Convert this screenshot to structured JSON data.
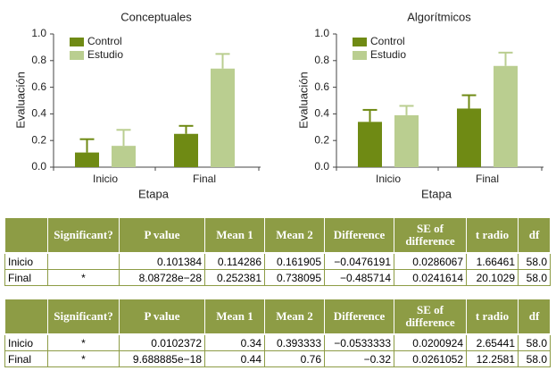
{
  "chart_data": [
    {
      "type": "bar",
      "title": "Conceptuales",
      "y_label": "Evaluación",
      "x_label": "Etapa",
      "categories": [
        "Inicio",
        "Final"
      ],
      "series": [
        {
          "name": "Control",
          "color": "#6f8a14",
          "values": [
            0.11,
            0.25
          ],
          "errors": [
            0.1,
            0.06
          ]
        },
        {
          "name": "Estudio",
          "color": "#bace90",
          "values": [
            0.16,
            0.74
          ],
          "errors": [
            0.12,
            0.11
          ]
        }
      ],
      "ylim": [
        0,
        1
      ],
      "yticks": [
        {
          "value": 0,
          "label": "0.0"
        },
        0.2,
        0.4,
        0.6,
        0.8,
        {
          "value": 1,
          "label": "1.0"
        }
      ],
      "legend": "upper left"
    },
    {
      "type": "bar",
      "title": "Algorítmicos",
      "y_label": "Evaluación",
      "x_label": "Etapa",
      "categories": [
        "Inicio",
        "Final"
      ],
      "series": [
        {
          "name": "Control",
          "color": "#6f8a14",
          "values": [
            0.34,
            0.44
          ],
          "errors": [
            0.09,
            0.1
          ]
        },
        {
          "name": "Estudio",
          "color": "#bace90",
          "values": [
            0.39,
            0.76
          ],
          "errors": [
            0.07,
            0.1
          ]
        }
      ],
      "ylim": [
        0,
        1
      ],
      "yticks": [
        {
          "value": 0,
          "label": "0.0"
        },
        0.2,
        0.4,
        0.6,
        0.8,
        {
          "value": 1,
          "label": "1.0"
        }
      ],
      "legend": "upper left"
    }
  ],
  "tables": [
    {
      "columns": [
        "Significant?",
        "P value",
        "Mean 1",
        "Mean 2",
        "Difference",
        "SE of difference",
        "t radio",
        "df"
      ],
      "rows": [
        [
          "Inicio",
          null,
          "0.101384",
          "0.114286",
          "0.161905",
          "−0.0476191",
          "0.0286067",
          "1.66461",
          "58.0"
        ],
        [
          "Final",
          "*",
          "8.08728e−28",
          "0.252381",
          "0.738095",
          "−0.485714",
          "0.0241614",
          "20.1029",
          "58.0"
        ]
      ]
    },
    {
      "columns": [
        "Significant?",
        "P value",
        "Mean 1",
        "Mean 2",
        "Difference",
        "SE of difference",
        "t radio",
        "df"
      ],
      "rows": [
        [
          "Inicio",
          "*",
          "0.0102372",
          "0.34",
          "0.393333",
          "−0.0533333",
          "0.0200924",
          "2.65441",
          "58.0"
        ],
        [
          "Final",
          "*",
          "9.688885e−18",
          "0.44",
          "0.76",
          "−0.32",
          "0.0261052",
          "12.2581",
          "58.0"
        ]
      ]
    }
  ]
}
